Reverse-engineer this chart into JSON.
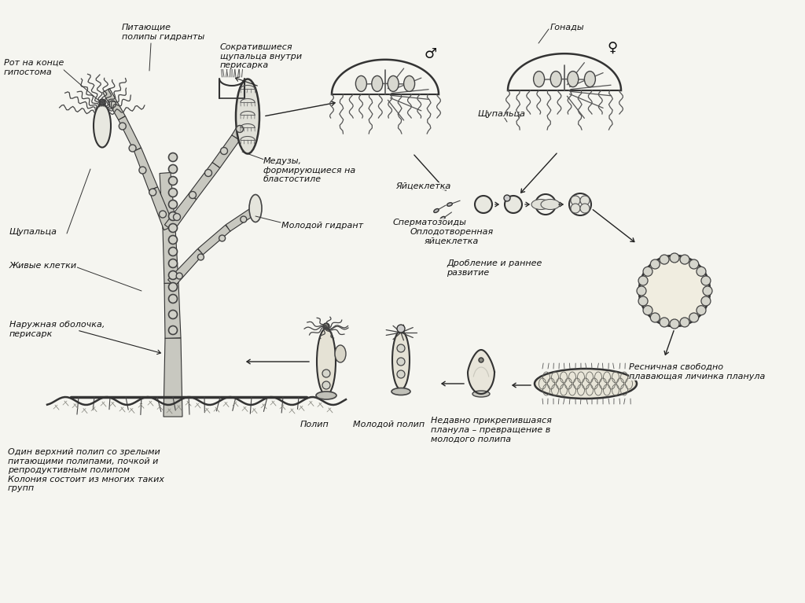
{
  "bg_color": "#f5f5f0",
  "line_color": "#222222",
  "figsize": [
    10.24,
    7.67
  ],
  "dpi": 100,
  "labels": {
    "rot": "Рот на конце\nгипостома",
    "pitayushchie": "Питающие\nполипы гидранты",
    "sokrativshiesya": "Сократившиеся\nщупальца внутри\nперисарка",
    "meduzy": "Медузы,\nформирующиеся на\nбластостиле",
    "molodoy_gidrant": "Молодой гидрант",
    "shchupalca": "Щупальца",
    "zhivye_kletki": "Живые клетки",
    "naruzhnaya": "Наружная оболочка,\nперисарк",
    "gonady": "Гонады",
    "shchupalca2": "Щупальца",
    "yaycekletka": "Яйцеклетка",
    "spermatozoidy": "Сперматозоиды",
    "oplodotvorennaya": "Оплодотворенная\nяйцеклетка",
    "droblenie": "Дробление и раннее\nразвитие",
    "resnich": "Ресничная свободно\nплавающая личинка планула",
    "nedavno": "Недавно прикрепившаяся\nпланула – превращение в\nмолодого полипа",
    "polip": "Полип",
    "molodoy_polip": "Молодой полип",
    "koloniya": "Один верхний полип со зрелыми\nпитающими полипами, почкой и\nрепродуктивным полипом\nКолония состоит из многих таких\nгрупп"
  }
}
